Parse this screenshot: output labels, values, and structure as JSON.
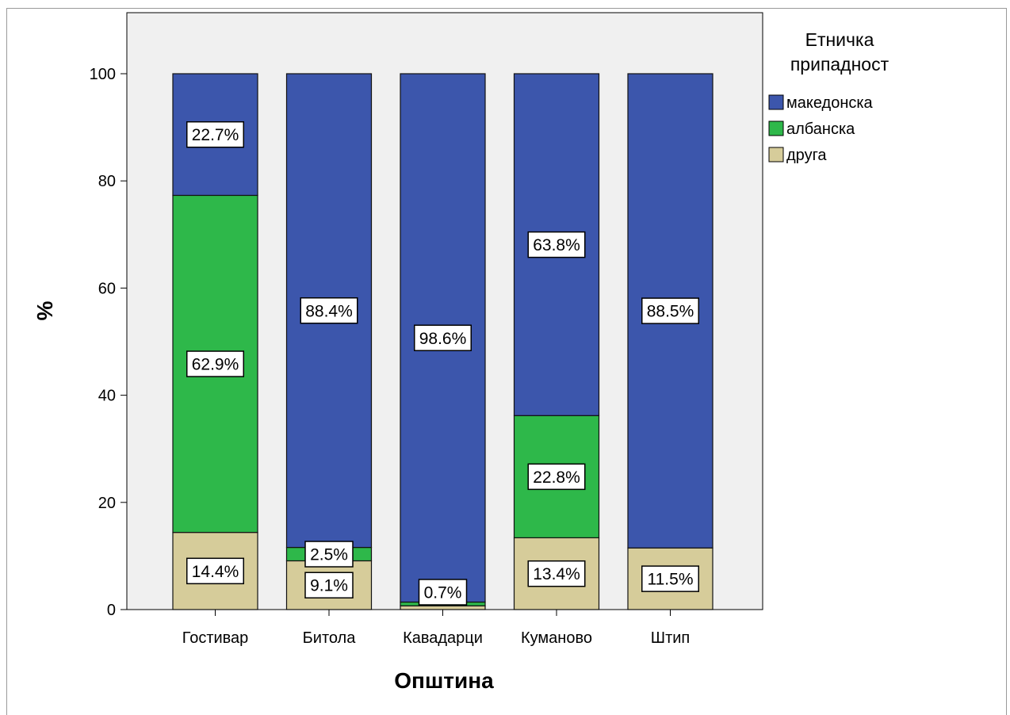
{
  "chart_data": {
    "type": "bar",
    "stacked": true,
    "categories": [
      "Гостивар",
      "Битола",
      "Кавадарци",
      "Куманово",
      "Штип"
    ],
    "series": [
      {
        "name": "друга",
        "color": "#d6cc9a",
        "values": [
          14.4,
          9.1,
          0.7,
          13.4,
          11.5
        ]
      },
      {
        "name": "албанска",
        "color": "#2eb84a",
        "values": [
          62.9,
          2.5,
          0.7,
          22.8,
          0.0
        ]
      },
      {
        "name": "македонска",
        "color": "#3c56ac",
        "values": [
          22.7,
          88.4,
          98.6,
          63.8,
          88.5
        ]
      }
    ],
    "data_labels": [
      [
        {
          "series": "друга",
          "text": "14.4%"
        },
        {
          "series": "албанска",
          "text": "62.9%"
        },
        {
          "series": "македонска",
          "text": "22.7%"
        }
      ],
      [
        {
          "series": "друга",
          "text": "9.1%"
        },
        {
          "series": "албанска",
          "text": "2.5%"
        },
        {
          "series": "македонска",
          "text": "88.4%"
        }
      ],
      [
        {
          "series": "друга",
          "text": "0.7%"
        },
        {
          "series": "македонска",
          "text": "98.6%"
        }
      ],
      [
        {
          "series": "друга",
          "text": "13.4%"
        },
        {
          "series": "албанска",
          "text": "22.8%"
        },
        {
          "series": "македонска",
          "text": "63.8%"
        }
      ],
      [
        {
          "series": "друга",
          "text": "11.5%"
        },
        {
          "series": "македонска",
          "text": "88.5%"
        }
      ]
    ],
    "xlabel": "Општина",
    "ylabel": "%",
    "ylim": [
      0,
      100
    ],
    "yticks": [
      0,
      20,
      40,
      60,
      80,
      100
    ],
    "legend": {
      "title_lines": [
        "Етничка",
        "припадност"
      ],
      "order": [
        "македонска",
        "албанска",
        "друга"
      ],
      "placement": "right"
    },
    "grid": false,
    "plot_background": "#f0f0f0"
  }
}
